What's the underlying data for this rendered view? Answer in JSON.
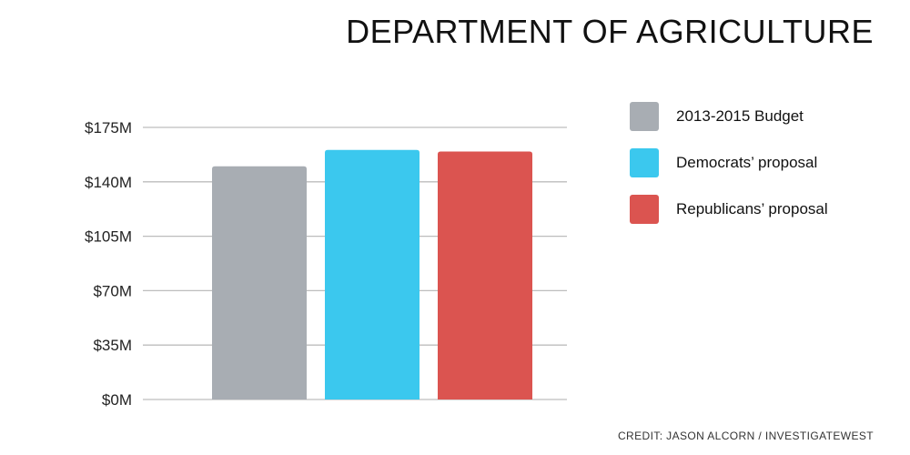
{
  "title": "DEPARTMENT OF AGRICULTURE",
  "credit": "CREDIT: JASON ALCORN / INVESTIGATEWEST",
  "chart_data": {
    "type": "bar",
    "title": "DEPARTMENT OF AGRICULTURE",
    "xlabel": "",
    "ylabel": "",
    "ylim": [
      0,
      175
    ],
    "yticks": [
      {
        "value": 0,
        "label": "$0M"
      },
      {
        "value": 35,
        "label": "$35M"
      },
      {
        "value": 70,
        "label": "$70M"
      },
      {
        "value": 105,
        "label": "$105M"
      },
      {
        "value": 140,
        "label": "$140M"
      },
      {
        "value": 175,
        "label": "$175M"
      }
    ],
    "grid": true,
    "legend_position": "right",
    "series": [
      {
        "name": "2013-2015 Budget",
        "value": 150,
        "color": "#A8ADB3"
      },
      {
        "name": "Democrats’ proposal",
        "value": 160.5,
        "color": "#3BC8EE"
      },
      {
        "name": "Republicans’ proposal",
        "value": 159.5,
        "color": "#DB5450"
      }
    ]
  }
}
